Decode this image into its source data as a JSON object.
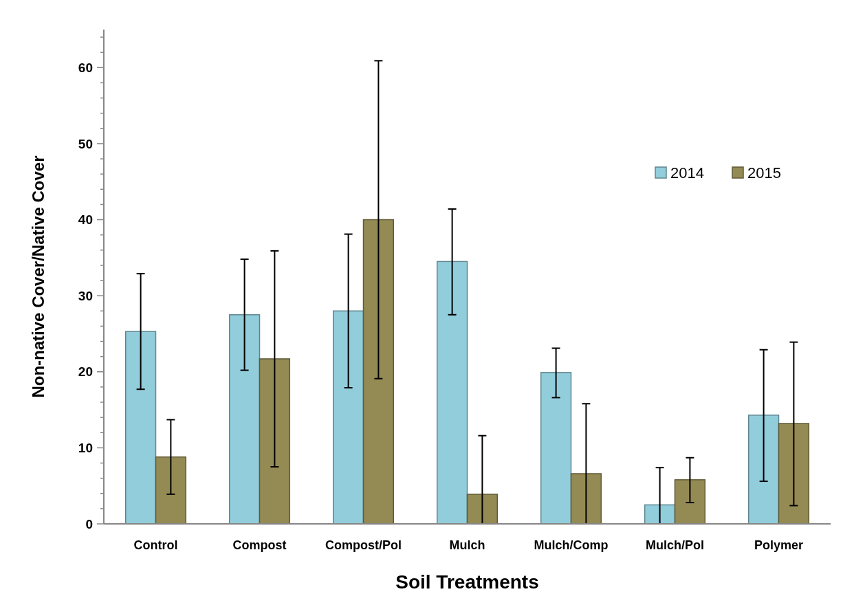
{
  "chart_data": {
    "type": "bar",
    "xlabel": "Soil Treatments",
    "ylabel": "Non-native Cover/Native Cover",
    "categories": [
      "Control",
      "Compost",
      "Compost/Pol",
      "Mulch",
      "Mulch/Comp",
      "Mulch/Pol",
      "Polymer"
    ],
    "series": [
      {
        "name": "2014",
        "color": "#92cddc",
        "values": [
          25.3,
          27.5,
          28.0,
          34.5,
          19.9,
          2.5,
          14.3
        ],
        "errors": [
          [
            17.7,
            32.9
          ],
          [
            20.2,
            34.8
          ],
          [
            17.9,
            38.1
          ],
          [
            27.5,
            41.4
          ],
          [
            16.6,
            23.1
          ],
          [
            0,
            7.4
          ],
          [
            5.6,
            22.9
          ]
        ]
      },
      {
        "name": "2015",
        "color": "#948a54",
        "values": [
          8.8,
          21.7,
          40.0,
          3.9,
          6.6,
          5.8,
          13.2
        ],
        "errors": [
          [
            3.9,
            13.7
          ],
          [
            7.5,
            35.9
          ],
          [
            19.1,
            60.9
          ],
          [
            0,
            11.6
          ],
          [
            0,
            15.8
          ],
          [
            2.8,
            8.7
          ],
          [
            2.4,
            23.9
          ]
        ]
      }
    ],
    "ylim": [
      0,
      65
    ],
    "yticks": [
      0,
      {
        "value": 2,
        "label": null
      },
      {
        "value": 4,
        "label": null
      },
      {
        "value": 6,
        "label": null
      },
      {
        "value": 8,
        "label": null
      },
      10,
      {
        "value": 12,
        "label": null
      },
      {
        "value": 14,
        "label": null
      },
      {
        "value": 16,
        "label": null
      },
      {
        "value": 18,
        "label": null
      },
      20,
      {
        "value": 22,
        "label": null
      },
      {
        "value": 24,
        "label": null
      },
      {
        "value": 26,
        "label": null
      },
      {
        "value": 28,
        "label": null
      },
      30,
      {
        "value": 32,
        "label": null
      },
      {
        "value": 34,
        "label": null
      },
      {
        "value": 36,
        "label": null
      },
      {
        "value": 38,
        "label": null
      },
      40,
      {
        "value": 42,
        "label": null
      },
      {
        "value": 44,
        "label": null
      },
      {
        "value": 46,
        "label": null
      },
      {
        "value": 48,
        "label": null
      },
      50,
      {
        "value": 52,
        "label": null
      },
      {
        "value": 54,
        "label": null
      },
      {
        "value": 56,
        "label": null
      },
      {
        "value": 58,
        "label": null
      },
      60,
      {
        "value": 62,
        "label": null
      },
      {
        "value": 64,
        "label": null
      }
    ],
    "legend": "top right",
    "grid": false
  }
}
